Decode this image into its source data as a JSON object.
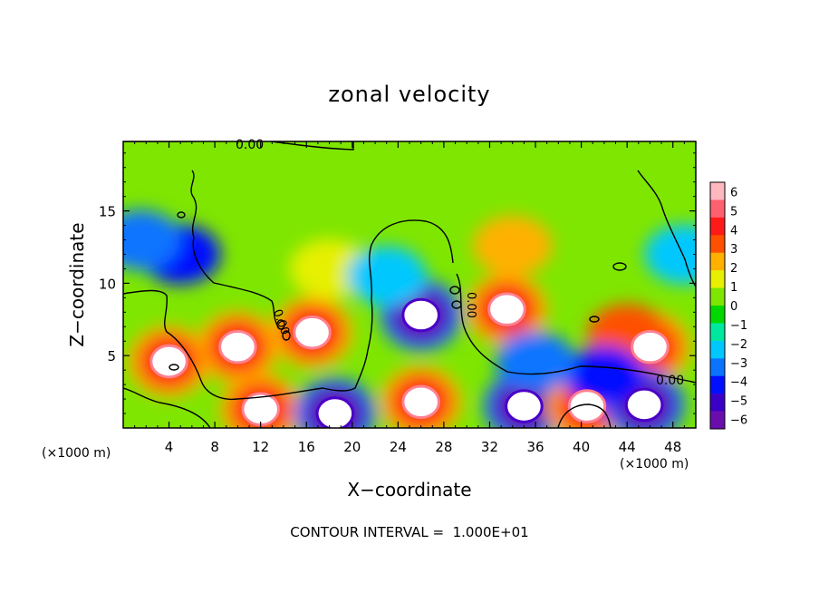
{
  "chart_data": {
    "type": "heatmap",
    "title": "zonal velocity",
    "xlabel": "X−coordinate",
    "ylabel": "Z−coordinate",
    "x_unit": "(×1000 m)",
    "y_unit": "(×1000 m)",
    "x_ticks": [
      4,
      8,
      12,
      16,
      20,
      24,
      28,
      32,
      36,
      40,
      44,
      48
    ],
    "y_ticks": [
      5,
      10,
      15
    ],
    "xlim": [
      0,
      50
    ],
    "ylim": [
      0,
      19.8
    ],
    "footer": "CONTOUR INTERVAL =  1.000E+01",
    "contour_labels": [
      "0.00",
      "0.00",
      "0.00",
      "0.00"
    ],
    "colorbar": {
      "ticks": [
        "6",
        "5",
        "4",
        "3",
        "2",
        "1",
        "0",
        "−1",
        "−2",
        "−3",
        "−4",
        "−5",
        "−6"
      ],
      "range": [
        -6,
        6
      ],
      "colors": [
        "#6a0dad",
        "#3a00c8",
        "#0010ff",
        "#0a74ff",
        "#00c8ff",
        "#00e8a0",
        "#00d800",
        "#7ee600",
        "#e6f000",
        "#ffb000",
        "#ff5000",
        "#ff1a1a",
        "#ff6070",
        "#ffb8c0"
      ]
    },
    "features": [
      {
        "x": 10,
        "z": 5.6,
        "value": 8
      },
      {
        "x": 16.5,
        "z": 6.6,
        "value": 8
      },
      {
        "x": 26,
        "z": 7.8,
        "value": -8
      },
      {
        "x": 33.5,
        "z": 8.2,
        "value": 8
      },
      {
        "x": 46,
        "z": 5.6,
        "value": 8
      },
      {
        "x": 4,
        "z": 4.6,
        "value": 8
      },
      {
        "x": 12,
        "z": 1.3,
        "value": 7
      },
      {
        "x": 18.5,
        "z": 1.0,
        "value": -7
      },
      {
        "x": 26,
        "z": 1.8,
        "value": 7
      },
      {
        "x": 35,
        "z": 1.5,
        "value": -7
      },
      {
        "x": 40.5,
        "z": 1.5,
        "value": 7
      },
      {
        "x": 45.5,
        "z": 1.6,
        "value": -7
      },
      {
        "x": 5,
        "z": 12,
        "value": -3.5
      },
      {
        "x": 1.5,
        "z": 13,
        "value": -3
      },
      {
        "x": 18,
        "z": 11,
        "value": 2.5
      },
      {
        "x": 34,
        "z": 12.6,
        "value": 3.5
      },
      {
        "x": 23,
        "z": 10.5,
        "value": -2
      },
      {
        "x": 44,
        "z": 6.5,
        "value": 4
      },
      {
        "x": 42,
        "z": 3.6,
        "value": -4
      },
      {
        "x": 49,
        "z": 12,
        "value": -1.5
      },
      {
        "x": 36,
        "z": 4.6,
        "value": -3
      }
    ]
  }
}
